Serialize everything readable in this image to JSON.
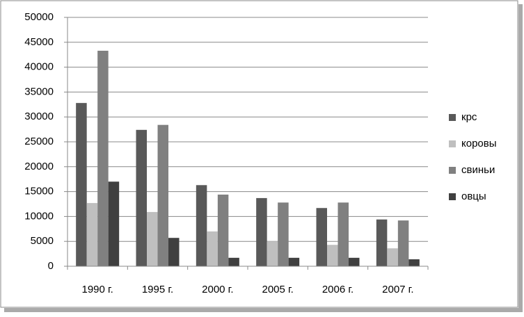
{
  "chart_data": {
    "type": "bar",
    "categories": [
      "1990 г.",
      "1995 г.",
      "2000 г.",
      "2005 г.",
      "2006 г.",
      "2007 г."
    ],
    "series": [
      {
        "name": "крс",
        "color": "#595959",
        "values": [
          32800,
          27400,
          16300,
          13700,
          11700,
          9400
        ]
      },
      {
        "name": "коровы",
        "color": "#bfbfbf",
        "values": [
          12700,
          10900,
          7000,
          5000,
          4300,
          3600
        ]
      },
      {
        "name": "свиньи",
        "color": "#808080",
        "values": [
          43300,
          28400,
          14400,
          12800,
          12800,
          9200
        ]
      },
      {
        "name": "овцы",
        "color": "#404040",
        "values": [
          17000,
          5700,
          1700,
          1700,
          1700,
          1400
        ]
      }
    ],
    "ylim": [
      0,
      50000
    ],
    "yticks": [
      0,
      5000,
      10000,
      15000,
      20000,
      25000,
      30000,
      35000,
      40000,
      45000,
      50000
    ],
    "grid": true,
    "legend": "right"
  }
}
